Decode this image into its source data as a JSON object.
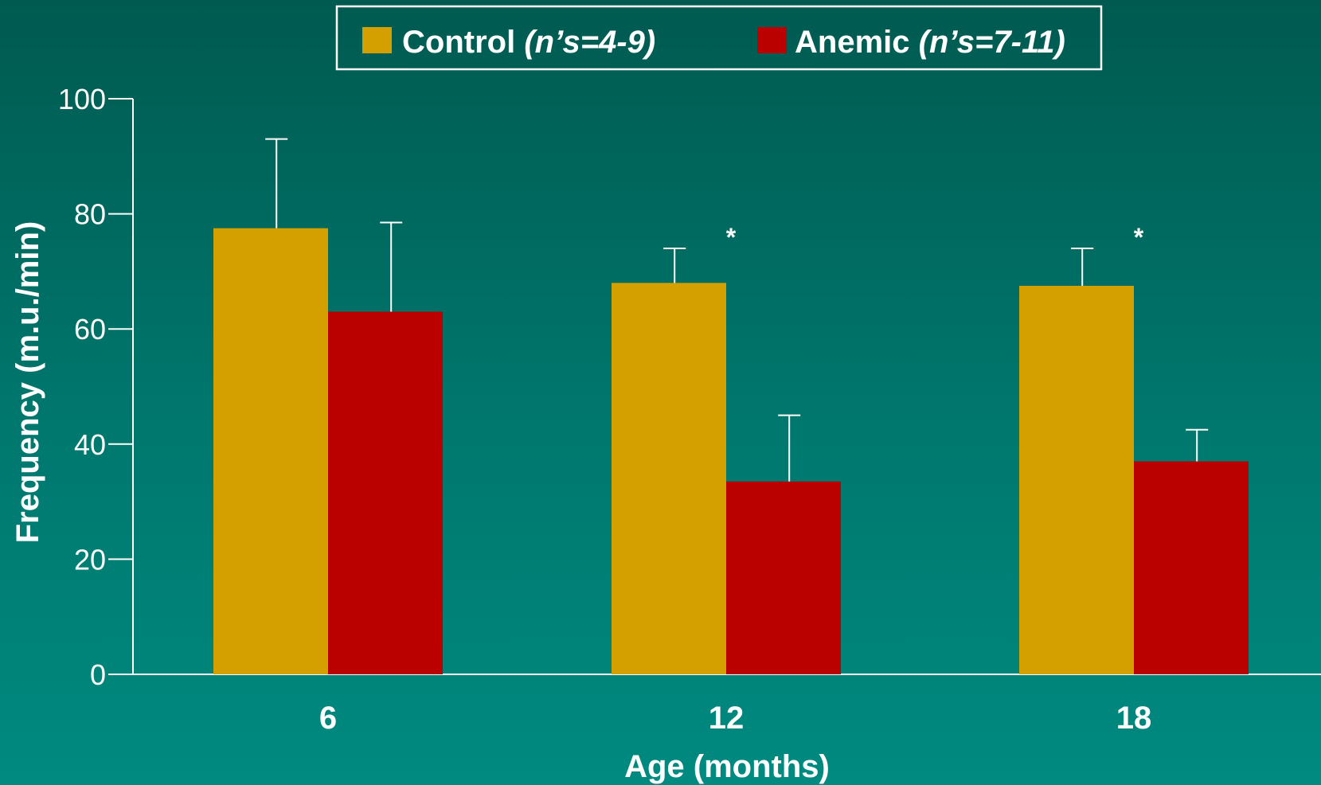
{
  "chart_data": {
    "type": "bar",
    "categories": [
      "6",
      "12",
      "18"
    ],
    "series": [
      {
        "name": "Control",
        "note": "(n’s=4-9)",
        "color": "#d4a000",
        "values": [
          77.5,
          68,
          67.5
        ],
        "errors": [
          15.5,
          6,
          6.5
        ]
      },
      {
        "name": "Anemic",
        "note": "(n’s=7-11)",
        "color": "#bb0000",
        "values": [
          63,
          33.5,
          37
        ],
        "errors": [
          15.5,
          11.5,
          5.5
        ]
      }
    ],
    "significance": [
      "",
      "*",
      "*"
    ],
    "xlabel": "Age (months)",
    "ylabel": "Frequency (m.u./min)",
    "ylim": [
      0,
      100
    ],
    "yticks": [
      0,
      20,
      40,
      60,
      80,
      100
    ],
    "grid": false,
    "legend_position": "top-center"
  }
}
